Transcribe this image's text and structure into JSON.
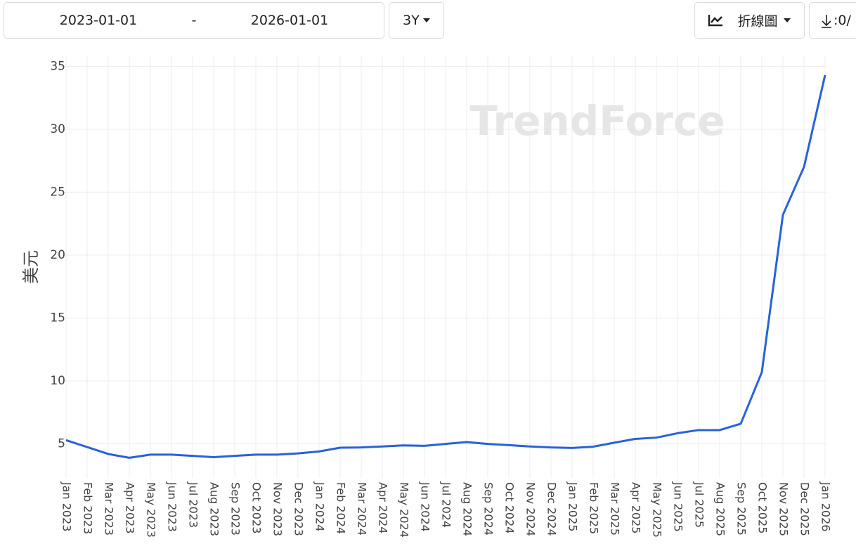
{
  "controls": {
    "start_date": "2023-01-01",
    "separator": "-",
    "end_date": "2026-01-01",
    "range": "3Y",
    "chart_type": "折線圖",
    "download": ":0/"
  },
  "chart_data": {
    "type": "line",
    "watermark": "TrendForce",
    "y_label": "美元",
    "categories": [
      "Jan 2023",
      "Feb 2023",
      "Mar 2023",
      "Apr 2023",
      "May 2023",
      "Jun 2023",
      "Jul 2023",
      "Aug 2023",
      "Sep 2023",
      "Oct 2023",
      "Nov 2023",
      "Dec 2023",
      "Jan 2024",
      "Feb 2024",
      "Mar 2024",
      "Apr 2024",
      "May 2024",
      "Jun 2024",
      "Jul 2024",
      "Aug 2024",
      "Sep 2024",
      "Oct 2024",
      "Nov 2024",
      "Dec 2024",
      "Jan 2025",
      "Feb 2025",
      "Mar 2025",
      "Apr 2025",
      "May 2025",
      "Jun 2025",
      "Jul 2025",
      "Aug 2025",
      "Sep 2025",
      "Oct 2025",
      "Nov 2025",
      "Dec 2025",
      "Jan 2026"
    ],
    "values": [
      5.3,
      4.75,
      4.2,
      3.9,
      4.15,
      4.15,
      4.05,
      3.95,
      4.05,
      4.15,
      4.15,
      4.25,
      4.4,
      4.7,
      4.72,
      4.8,
      4.88,
      4.85,
      5.0,
      5.15,
      5.0,
      4.9,
      4.8,
      4.72,
      4.68,
      4.78,
      5.1,
      5.4,
      5.5,
      5.85,
      6.1,
      6.1,
      6.6,
      10.7,
      23.2,
      27.0,
      34.3
    ],
    "color": "#2962d9",
    "ylim": [
      2.3,
      35.8
    ],
    "yticks": [
      5,
      10,
      15,
      20,
      25,
      30,
      35
    ],
    "grid": true
  }
}
